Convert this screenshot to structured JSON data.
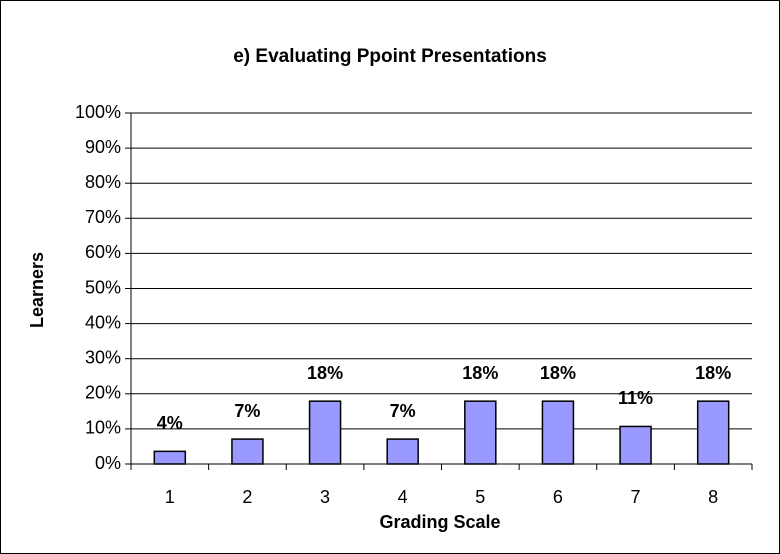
{
  "chart_data": {
    "type": "bar",
    "title": "e)  Evaluating Ppoint Presentations",
    "xlabel": "Grading Scale",
    "ylabel": "Learners",
    "categories": [
      "1",
      "2",
      "3",
      "4",
      "5",
      "6",
      "7",
      "8"
    ],
    "values": [
      3.6,
      7.1,
      17.9,
      7.1,
      17.9,
      17.9,
      10.7,
      17.9
    ],
    "value_labels": [
      "4%",
      "7%",
      "18%",
      "7%",
      "18%",
      "18%",
      "11%",
      "18%"
    ],
    "color": "#9999ff",
    "ylim": [
      0,
      100
    ],
    "yticks": [
      {
        "value": 0,
        "label": "0%"
      },
      {
        "value": 10,
        "label": "10%"
      },
      {
        "value": 20,
        "label": "20%"
      },
      {
        "value": 30,
        "label": "30%"
      },
      {
        "value": 40,
        "label": "40%"
      },
      {
        "value": 50,
        "label": "50%"
      },
      {
        "value": 60,
        "label": "60%"
      },
      {
        "value": 70,
        "label": "70%"
      },
      {
        "value": 80,
        "label": "80%"
      },
      {
        "value": 90,
        "label": "90%"
      },
      {
        "value": 100,
        "label": "100%"
      }
    ],
    "grid": true
  }
}
